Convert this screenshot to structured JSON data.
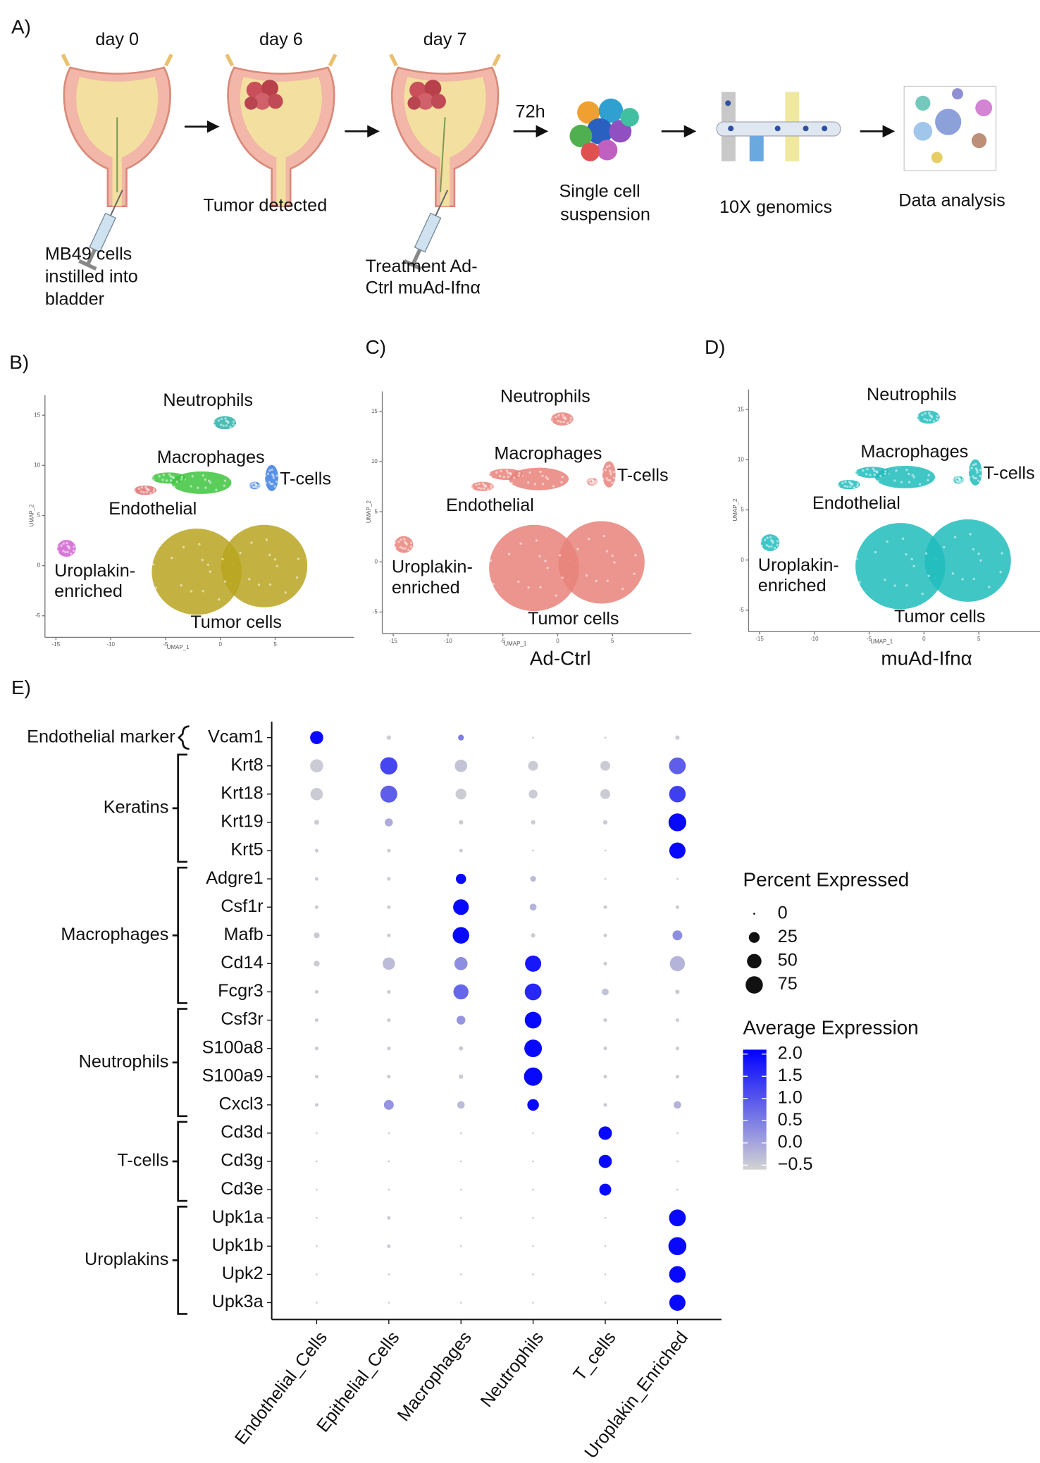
{
  "panel_a": {
    "label": "A)",
    "days": [
      "day 0",
      "day 6",
      "day 7"
    ],
    "mb49": [
      "MB49 cells",
      "instilled into",
      "bladder"
    ],
    "tumor": "Tumor detected",
    "treatment": [
      "Treatment Ad-",
      "Ctrl muAd-Ifnα"
    ],
    "time": "72h",
    "suspension": [
      "Single cell",
      "suspension"
    ],
    "genomics": "10X genomics",
    "analysis": "Data analysis"
  },
  "umap_panels": [
    {
      "label": "B)",
      "xlabel": "UMAP_1",
      "ylabel": "UMAP_2",
      "xlim": [
        -16,
        12
      ],
      "ylim": [
        -7,
        17
      ],
      "xticks": [
        -15,
        -10,
        -5,
        0,
        5
      ],
      "yticks": [
        -5,
        0,
        5,
        10,
        15
      ],
      "clusters": [
        {
          "name": "Neutrophils",
          "color": "#2ab0a8"
        },
        {
          "name": "Macrophages",
          "color": "#3ec43e"
        },
        {
          "name": "T-cells",
          "color": "#3a7ee0"
        },
        {
          "name": "Endothelial",
          "color": "#e07070"
        },
        {
          "name": [
            "Uroplakin-",
            "enriched"
          ],
          "color": "#d060d0"
        },
        {
          "name": "Tumor cells",
          "color": "#b8a520"
        }
      ]
    },
    {
      "label": "C)",
      "subtitle": "Ad-Ctrl",
      "xlabel": "UMAP_1",
      "ylabel": "UMAP_2",
      "xlim": [
        -16,
        12
      ],
      "ylim": [
        -7,
        17
      ],
      "xticks": [
        -15,
        -10,
        -5,
        0,
        5
      ],
      "yticks": [
        -5,
        0,
        5,
        10,
        15
      ],
      "clusters": [
        {
          "name": "Neutrophils",
          "color": "#e8837a"
        },
        {
          "name": "Macrophages",
          "color": "#e8837a"
        },
        {
          "name": "T-cells",
          "color": "#e8837a"
        },
        {
          "name": "Endothelial",
          "color": "#e8837a"
        },
        {
          "name": [
            "Uroplakin-",
            "enriched"
          ],
          "color": "#e8837a"
        },
        {
          "name": "Tumor cells",
          "color": "#e8837a"
        }
      ]
    },
    {
      "label": "D)",
      "subtitle": "muAd-Ifnα",
      "xlabel": "UMAP_1",
      "ylabel": "UMAP_2",
      "xlim": [
        -16,
        12
      ],
      "ylim": [
        -7,
        17
      ],
      "xticks": [
        -15,
        -10,
        -5,
        0,
        5
      ],
      "yticks": [
        -5,
        0,
        5,
        10,
        15
      ],
      "clusters": [
        {
          "name": "Neutrophils",
          "color": "#20bcbc"
        },
        {
          "name": "Macrophages",
          "color": "#20bcbc"
        },
        {
          "name": "T-cells",
          "color": "#20bcbc"
        },
        {
          "name": "Endothelial",
          "color": "#20bcbc"
        },
        {
          "name": [
            "Uroplakin-",
            "enriched"
          ],
          "color": "#20bcbc"
        },
        {
          "name": "Tumor cells",
          "color": "#20bcbc"
        }
      ]
    }
  ],
  "chart_data": {
    "type": "dotplot",
    "label": "E)",
    "categories": [
      "Endothelial_Cells",
      "Epithelial_Cells",
      "Macrophages",
      "Neutrophils",
      "T_cells",
      "Uroplakin_Enriched"
    ],
    "genes": [
      "Vcam1",
      "Krt8",
      "Krt18",
      "Krt19",
      "Krt5",
      "Adgre1",
      "Csf1r",
      "Mafb",
      "Cd14",
      "Fcgr3",
      "Csf3r",
      "S100a8",
      "S100a9",
      "Cxcl3",
      "Cd3d",
      "Cd3g",
      "Cd3e",
      "Upk1a",
      "Upk1b",
      "Upk2",
      "Upk3a"
    ],
    "row_groups": [
      "Endothelial marker",
      "Keratins",
      "Macrophages",
      "Neutrophils",
      "T-cells",
      "Uroplakins"
    ],
    "percent": [
      [
        40,
        2,
        5,
        0,
        0,
        2
      ],
      [
        40,
        75,
        35,
        20,
        20,
        70
      ],
      [
        35,
        72,
        25,
        15,
        20,
        68
      ],
      [
        3,
        12,
        2,
        2,
        2,
        80
      ],
      [
        1,
        1,
        1,
        0,
        0,
        65
      ],
      [
        1,
        1,
        22,
        5,
        0,
        0
      ],
      [
        1,
        1,
        60,
        8,
        1,
        1
      ],
      [
        5,
        1,
        68,
        2,
        1,
        20
      ],
      [
        5,
        35,
        40,
        65,
        1,
        55
      ],
      [
        1,
        1,
        55,
        70,
        8,
        2
      ],
      [
        1,
        1,
        15,
        70,
        1,
        1
      ],
      [
        1,
        1,
        2,
        78,
        1,
        1
      ],
      [
        1,
        1,
        2,
        85,
        1,
        1
      ],
      [
        1,
        20,
        10,
        30,
        1,
        10
      ],
      [
        0,
        0,
        0,
        0,
        42,
        0
      ],
      [
        0,
        0,
        0,
        0,
        40,
        0
      ],
      [
        0,
        0,
        0,
        0,
        32,
        0
      ],
      [
        0,
        1,
        0,
        0,
        0,
        70
      ],
      [
        0,
        1,
        0,
        0,
        0,
        82
      ],
      [
        0,
        0,
        0,
        0,
        0,
        68
      ],
      [
        0,
        0,
        0,
        0,
        0,
        65
      ]
    ],
    "average": [
      [
        2.0,
        -0.5,
        0.5,
        -0.5,
        -0.5,
        -0.5
      ],
      [
        -0.5,
        1.2,
        -0.4,
        -0.5,
        -0.5,
        0.9
      ],
      [
        -0.5,
        0.9,
        -0.5,
        -0.5,
        -0.5,
        1.3
      ],
      [
        -0.5,
        -0.1,
        -0.5,
        -0.5,
        -0.5,
        2.0
      ],
      [
        -0.5,
        -0.5,
        -0.5,
        -0.5,
        -0.5,
        2.0
      ],
      [
        -0.5,
        -0.5,
        2.0,
        -0.3,
        -0.5,
        -0.5
      ],
      [
        -0.5,
        -0.5,
        2.0,
        -0.2,
        -0.5,
        -0.5
      ],
      [
        -0.5,
        -0.5,
        2.0,
        -0.5,
        -0.5,
        0.3
      ],
      [
        -0.5,
        -0.3,
        0.3,
        1.8,
        -0.5,
        -0.2
      ],
      [
        -0.5,
        -0.5,
        0.8,
        1.6,
        -0.4,
        -0.5
      ],
      [
        -0.5,
        -0.5,
        0.2,
        2.0,
        -0.5,
        -0.5
      ],
      [
        -0.5,
        -0.5,
        -0.5,
        2.0,
        -0.5,
        -0.5
      ],
      [
        -0.5,
        -0.5,
        -0.5,
        2.0,
        -0.5,
        -0.5
      ],
      [
        -0.5,
        0.2,
        -0.3,
        2.0,
        -0.5,
        -0.2
      ],
      [
        -0.5,
        -0.5,
        -0.5,
        -0.5,
        2.0,
        -0.5
      ],
      [
        -0.5,
        -0.5,
        -0.5,
        -0.5,
        2.0,
        -0.5
      ],
      [
        -0.5,
        -0.5,
        -0.5,
        -0.5,
        2.0,
        -0.5
      ],
      [
        -0.5,
        -0.5,
        -0.5,
        -0.5,
        -0.5,
        2.0
      ],
      [
        -0.5,
        -0.5,
        -0.5,
        -0.5,
        -0.5,
        2.0
      ],
      [
        -0.5,
        -0.5,
        -0.5,
        -0.5,
        -0.5,
        2.0
      ],
      [
        -0.5,
        -0.5,
        -0.5,
        -0.5,
        -0.5,
        2.0
      ]
    ],
    "size_title": "Percent Expressed",
    "size_legend": [
      0,
      25,
      50,
      75
    ],
    "color_title": "Average Expression",
    "clim": [
      -0.6,
      2.1
    ],
    "color_low": "#d3d3d3",
    "color_high": "#0000ff",
    "color_ticks": [
      {
        "value": 2,
        "label": "2.0"
      },
      {
        "value": 1.5,
        "label": "1.5"
      },
      {
        "value": 1,
        "label": "1.0"
      },
      {
        "value": 0.5,
        "label": "0.5"
      },
      {
        "value": 0,
        "label": "0.0"
      },
      {
        "value": -0.5,
        "label": "−0.5"
      }
    ]
  }
}
